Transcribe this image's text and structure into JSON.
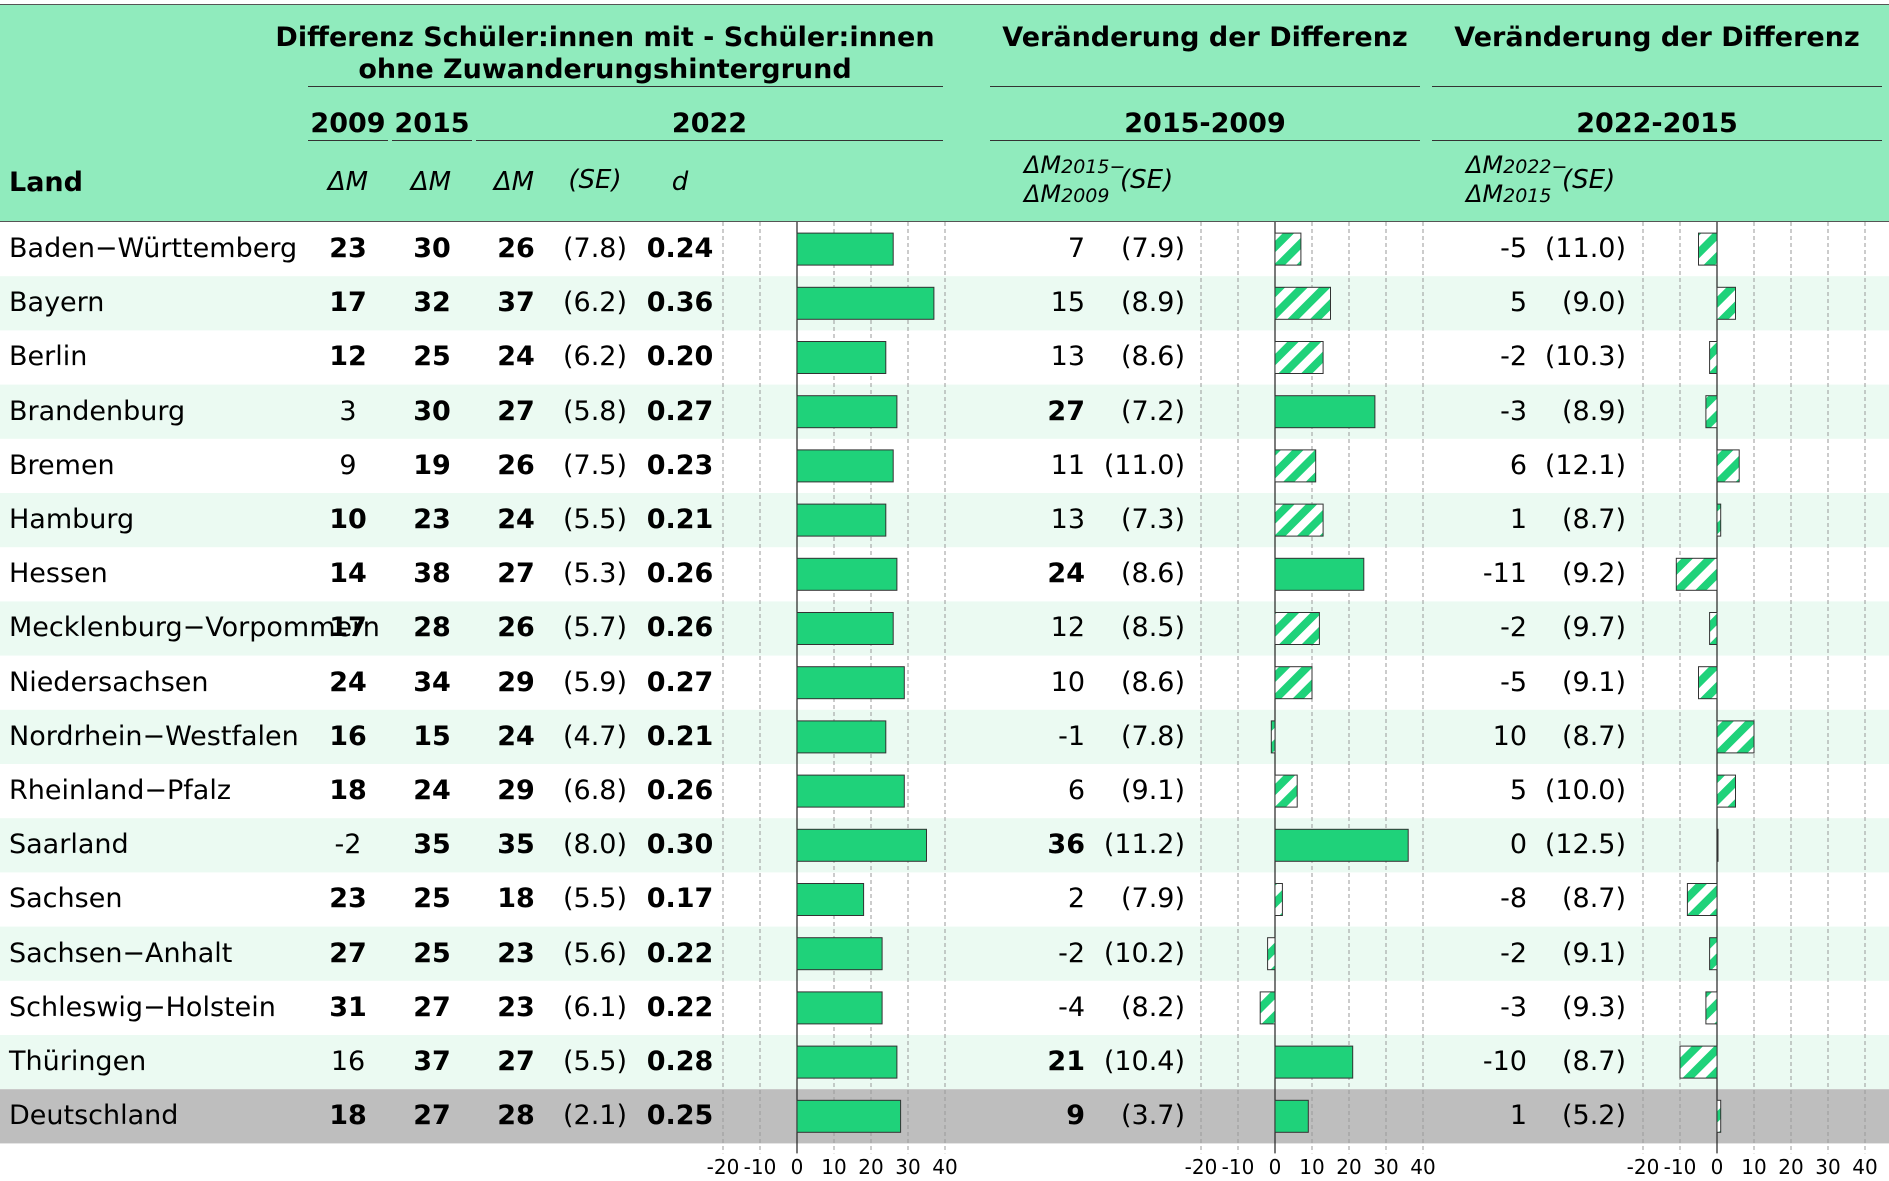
{
  "headers": {
    "group1": "Differenz Schüler:innen mit - Schüler:innen ohne Zuwanderungshintergrund",
    "group2": "Veränderung der Differenz",
    "group3": "Veränderung der Differenz",
    "year_2009": "2009",
    "year_2015": "2015",
    "year_2022": "2022",
    "period_2015_2009": "2015-2009",
    "period_2022_2015": "2022-2015",
    "land": "Land",
    "dm": "ΔM",
    "se": "(SE)",
    "d": "d",
    "dm_2015": "ΔM",
    "dm_2015_sub": "2015",
    "dm_2009": "ΔM",
    "dm_2009_sub": "2009",
    "dm_2022": "ΔM",
    "dm_2022_sub": "2022",
    "dm_2015b": "ΔM",
    "dm_2015b_sub": "2015",
    "minus": "−"
  },
  "colors": {
    "header_bg": "#90ebbd",
    "stripe": "#ebfaf2",
    "total_bg": "#bebebe",
    "bar": "#1fd27a",
    "hatch_bg": "#ffffff"
  },
  "chart_data": {
    "type": "table",
    "axis_ticks": [
      "-20",
      "-10",
      "0",
      "10",
      "20",
      "30",
      "40"
    ],
    "axis_range": [
      -20,
      40
    ],
    "rows": [
      {
        "land": "Baden−Württemberg",
        "m2009": "23",
        "m2009_sig": true,
        "m2015": "30",
        "m2015_sig": true,
        "m2022": "26",
        "se2022": "(7.8)",
        "d": "0.24",
        "diff1": "7",
        "diff1_sig": false,
        "se1": "(7.9)",
        "diff2": "-5",
        "diff2_sig": false,
        "se2": "(11.0)",
        "v2022": 26,
        "v1": 7,
        "v2": -5
      },
      {
        "land": "Bayern",
        "m2009": "17",
        "m2009_sig": true,
        "m2015": "32",
        "m2015_sig": true,
        "m2022": "37",
        "se2022": "(6.2)",
        "d": "0.36",
        "diff1": "15",
        "diff1_sig": false,
        "se1": "(8.9)",
        "diff2": "5",
        "diff2_sig": false,
        "se2": "(9.0)",
        "v2022": 37,
        "v1": 15,
        "v2": 5
      },
      {
        "land": "Berlin",
        "m2009": "12",
        "m2009_sig": true,
        "m2015": "25",
        "m2015_sig": true,
        "m2022": "24",
        "se2022": "(6.2)",
        "d": "0.20",
        "diff1": "13",
        "diff1_sig": false,
        "se1": "(8.6)",
        "diff2": "-2",
        "diff2_sig": false,
        "se2": "(10.3)",
        "v2022": 24,
        "v1": 13,
        "v2": -2
      },
      {
        "land": "Brandenburg",
        "m2009": "3",
        "m2009_sig": false,
        "m2015": "30",
        "m2015_sig": true,
        "m2022": "27",
        "se2022": "(5.8)",
        "d": "0.27",
        "diff1": "27",
        "diff1_sig": true,
        "se1": "(7.2)",
        "diff2": "-3",
        "diff2_sig": false,
        "se2": "(8.9)",
        "v2022": 27,
        "v1": 27,
        "v2": -3
      },
      {
        "land": "Bremen",
        "m2009": "9",
        "m2009_sig": false,
        "m2015": "19",
        "m2015_sig": true,
        "m2022": "26",
        "se2022": "(7.5)",
        "d": "0.23",
        "diff1": "11",
        "diff1_sig": false,
        "se1": "(11.0)",
        "diff2": "6",
        "diff2_sig": false,
        "se2": "(12.1)",
        "v2022": 26,
        "v1": 11,
        "v2": 6
      },
      {
        "land": "Hamburg",
        "m2009": "10",
        "m2009_sig": true,
        "m2015": "23",
        "m2015_sig": true,
        "m2022": "24",
        "se2022": "(5.5)",
        "d": "0.21",
        "diff1": "13",
        "diff1_sig": false,
        "se1": "(7.3)",
        "diff2": "1",
        "diff2_sig": false,
        "se2": "(8.7)",
        "v2022": 24,
        "v1": 13,
        "v2": 1
      },
      {
        "land": "Hessen",
        "m2009": "14",
        "m2009_sig": true,
        "m2015": "38",
        "m2015_sig": true,
        "m2022": "27",
        "se2022": "(5.3)",
        "d": "0.26",
        "diff1": "24",
        "diff1_sig": true,
        "se1": "(8.6)",
        "diff2": "-11",
        "diff2_sig": false,
        "se2": "(9.2)",
        "v2022": 27,
        "v1": 24,
        "v2": -11
      },
      {
        "land": "Mecklenburg−Vorpommern",
        "m2009": "17",
        "m2009_sig": true,
        "m2015": "28",
        "m2015_sig": true,
        "m2022": "26",
        "se2022": "(5.7)",
        "d": "0.26",
        "diff1": "12",
        "diff1_sig": false,
        "se1": "(8.5)",
        "diff2": "-2",
        "diff2_sig": false,
        "se2": "(9.7)",
        "v2022": 26,
        "v1": 12,
        "v2": -2
      },
      {
        "land": "Niedersachsen",
        "m2009": "24",
        "m2009_sig": true,
        "m2015": "34",
        "m2015_sig": true,
        "m2022": "29",
        "se2022": "(5.9)",
        "d": "0.27",
        "diff1": "10",
        "diff1_sig": false,
        "se1": "(8.6)",
        "diff2": "-5",
        "diff2_sig": false,
        "se2": "(9.1)",
        "v2022": 29,
        "v1": 10,
        "v2": -5
      },
      {
        "land": "Nordrhein−Westfalen",
        "m2009": "16",
        "m2009_sig": true,
        "m2015": "15",
        "m2015_sig": true,
        "m2022": "24",
        "se2022": "(4.7)",
        "d": "0.21",
        "diff1": "-1",
        "diff1_sig": false,
        "se1": "(7.8)",
        "diff2": "10",
        "diff2_sig": false,
        "se2": "(8.7)",
        "v2022": 24,
        "v1": -1,
        "v2": 10
      },
      {
        "land": "Rheinland−Pfalz",
        "m2009": "18",
        "m2009_sig": true,
        "m2015": "24",
        "m2015_sig": true,
        "m2022": "29",
        "se2022": "(6.8)",
        "d": "0.26",
        "diff1": "6",
        "diff1_sig": false,
        "se1": "(9.1)",
        "diff2": "5",
        "diff2_sig": false,
        "se2": "(10.0)",
        "v2022": 29,
        "v1": 6,
        "v2": 5
      },
      {
        "land": "Saarland",
        "m2009": "-2",
        "m2009_sig": false,
        "m2015": "35",
        "m2015_sig": true,
        "m2022": "35",
        "se2022": "(8.0)",
        "d": "0.30",
        "diff1": "36",
        "diff1_sig": true,
        "se1": "(11.2)",
        "diff2": "0",
        "diff2_sig": false,
        "se2": "(12.5)",
        "v2022": 35,
        "v1": 36,
        "v2": 0
      },
      {
        "land": "Sachsen",
        "m2009": "23",
        "m2009_sig": true,
        "m2015": "25",
        "m2015_sig": true,
        "m2022": "18",
        "se2022": "(5.5)",
        "d": "0.17",
        "diff1": "2",
        "diff1_sig": false,
        "se1": "(7.9)",
        "diff2": "-8",
        "diff2_sig": false,
        "se2": "(8.7)",
        "v2022": 18,
        "v1": 2,
        "v2": -8
      },
      {
        "land": "Sachsen−Anhalt",
        "m2009": "27",
        "m2009_sig": true,
        "m2015": "25",
        "m2015_sig": true,
        "m2022": "23",
        "se2022": "(5.6)",
        "d": "0.22",
        "diff1": "-2",
        "diff1_sig": false,
        "se1": "(10.2)",
        "diff2": "-2",
        "diff2_sig": false,
        "se2": "(9.1)",
        "v2022": 23,
        "v1": -2,
        "v2": -2
      },
      {
        "land": "Schleswig−Holstein",
        "m2009": "31",
        "m2009_sig": true,
        "m2015": "27",
        "m2015_sig": true,
        "m2022": "23",
        "se2022": "(6.1)",
        "d": "0.22",
        "diff1": "-4",
        "diff1_sig": false,
        "se1": "(8.2)",
        "diff2": "-3",
        "diff2_sig": false,
        "se2": "(9.3)",
        "v2022": 23,
        "v1": -4,
        "v2": -3
      },
      {
        "land": "Thüringen",
        "m2009": "16",
        "m2009_sig": false,
        "m2015": "37",
        "m2015_sig": true,
        "m2022": "27",
        "se2022": "(5.5)",
        "d": "0.28",
        "diff1": "21",
        "diff1_sig": true,
        "se1": "(10.4)",
        "diff2": "-10",
        "diff2_sig": false,
        "se2": "(8.7)",
        "v2022": 27,
        "v1": 21,
        "v2": -10
      },
      {
        "land": "Deutschland",
        "m2009": "18",
        "m2009_sig": true,
        "m2015": "27",
        "m2015_sig": true,
        "m2022": "28",
        "se2022": "(2.1)",
        "d": "0.25",
        "diff1": "9",
        "diff1_sig": true,
        "se1": "(3.7)",
        "diff2": "1",
        "diff2_sig": false,
        "se2": "(5.2)",
        "v2022": 28,
        "v1": 9,
        "v2": 1,
        "total": true
      }
    ]
  }
}
